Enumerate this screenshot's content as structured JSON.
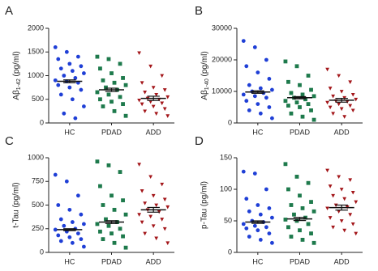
{
  "chart_data": [
    {
      "type": "scatter",
      "panel_label": "A",
      "ylabel": [
        "Aβ",
        "1-42",
        " (pg/ml)"
      ],
      "categories": [
        "HC",
        "PDAD",
        "ADD"
      ],
      "colors": [
        "#1f3fd6",
        "#1e7a4c",
        "#a3161a"
      ],
      "markers": [
        "circle",
        "square",
        "triangle-down"
      ],
      "ylim": [
        0,
        2000
      ],
      "yticks": [
        0,
        500,
        1000,
        1500,
        2000
      ],
      "values": [
        [
          1600,
          1500,
          1400,
          1350,
          1250,
          1200,
          1150,
          1100,
          1050,
          1000,
          950,
          900,
          880,
          850,
          800,
          750,
          700,
          600,
          500,
          350,
          200,
          100
        ],
        [
          1400,
          1350,
          1250,
          1150,
          1050,
          950,
          900,
          850,
          800,
          750,
          700,
          650,
          600,
          550,
          500,
          450,
          400,
          350,
          250,
          150
        ],
        [
          1480,
          1200,
          1000,
          850,
          750,
          700,
          650,
          600,
          550,
          520,
          500,
          480,
          450,
          420,
          400,
          350,
          300,
          250,
          200,
          150
        ]
      ],
      "means": [
        880,
        700,
        520
      ],
      "sem": [
        30,
        35,
        45
      ]
    },
    {
      "type": "scatter",
      "panel_label": "B",
      "ylabel": [
        "Aβ",
        "1-40",
        " (pg/ml)"
      ],
      "categories": [
        "HC",
        "PDAD",
        "ADD"
      ],
      "colors": [
        "#1f3fd6",
        "#1e7a4c",
        "#a3161a"
      ],
      "markers": [
        "circle",
        "square",
        "triangle-down"
      ],
      "ylim": [
        0,
        30000
      ],
      "yticks": [
        0,
        10000,
        20000,
        30000
      ],
      "values": [
        [
          26000,
          24000,
          20000,
          18000,
          16000,
          14000,
          12000,
          11000,
          10500,
          10000,
          9500,
          9000,
          8500,
          8000,
          7000,
          6000,
          5000,
          4000,
          3000,
          1500
        ],
        [
          19500,
          18000,
          15000,
          13000,
          12000,
          10500,
          9500,
          9000,
          8500,
          8000,
          7500,
          7000,
          6500,
          6000,
          5500,
          5000,
          4000,
          3000,
          2000,
          1000
        ],
        [
          17000,
          15000,
          13000,
          11000,
          10000,
          9000,
          8500,
          8000,
          7500,
          7000,
          6800,
          6500,
          6000,
          5500,
          5000,
          4500,
          4000,
          3000,
          2000
        ]
      ],
      "means": [
        9800,
        8000,
        7200
      ],
      "sem": [
        400,
        350,
        600
      ]
    },
    {
      "type": "scatter",
      "panel_label": "C",
      "ylabel": "t-Tau (pg/ml)",
      "categories": [
        "HC",
        "PDAD",
        "ADD"
      ],
      "colors": [
        "#1f3fd6",
        "#1e7a4c",
        "#a3161a"
      ],
      "markers": [
        "circle",
        "square",
        "triangle-down"
      ],
      "ylim": [
        0,
        1000
      ],
      "yticks": [
        0,
        250,
        500,
        750,
        1000
      ],
      "values": [
        [
          820,
          750,
          600,
          500,
          450,
          400,
          350,
          320,
          300,
          280,
          250,
          240,
          220,
          200,
          180,
          160,
          140,
          120,
          100,
          60
        ],
        [
          960,
          920,
          850,
          700,
          600,
          550,
          500,
          450,
          400,
          350,
          320,
          300,
          280,
          250,
          220,
          200,
          170,
          140,
          100,
          50
        ],
        [
          930,
          800,
          720,
          650,
          600,
          560,
          520,
          500,
          480,
          450,
          430,
          400,
          380,
          350,
          320,
          280,
          250,
          200,
          150,
          100
        ]
      ],
      "means": [
        240,
        320,
        450
      ],
      "sem": [
        10,
        15,
        25
      ]
    },
    {
      "type": "scatter",
      "panel_label": "D",
      "ylabel": "p-Tau (pg/ml)",
      "categories": [
        "HC",
        "PDAD",
        "ADD"
      ],
      "colors": [
        "#1f3fd6",
        "#1e7a4c",
        "#a3161a"
      ],
      "markers": [
        "circle",
        "square",
        "triangle-down"
      ],
      "ylim": [
        0,
        150
      ],
      "yticks": [
        0,
        50,
        100,
        150
      ],
      "values": [
        [
          128,
          125,
          100,
          85,
          75,
          70,
          65,
          60,
          55,
          50,
          48,
          45,
          42,
          40,
          38,
          35,
          30,
          25,
          20,
          15
        ],
        [
          140,
          120,
          110,
          100,
          90,
          80,
          75,
          70,
          65,
          60,
          55,
          52,
          50,
          45,
          40,
          35,
          30,
          25,
          20,
          15
        ],
        [
          130,
          120,
          115,
          105,
          100,
          95,
          90,
          85,
          80,
          75,
          72,
          70,
          65,
          60,
          55,
          50,
          45,
          40,
          35,
          30
        ]
      ],
      "means": [
        48,
        53,
        71
      ],
      "sem": [
        2,
        2.5,
        4
      ]
    }
  ]
}
